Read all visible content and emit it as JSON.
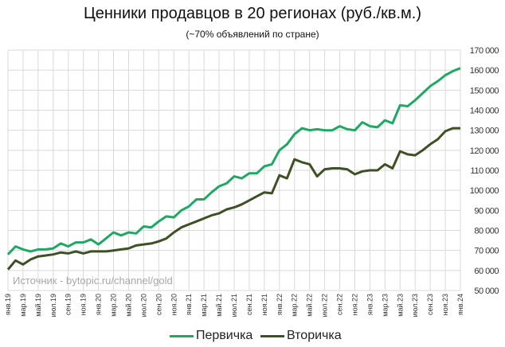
{
  "chart_data": {
    "type": "line",
    "title": "Ценники продавцов в 20 регионах (руб./кв.м.)",
    "subtitle": "(~70% объявлений по стране)",
    "watermark": "Источник - bytopic.ru/channel/gold",
    "ylim": [
      50000,
      170000
    ],
    "y_ticks": [
      50000,
      60000,
      70000,
      80000,
      90000,
      100000,
      110000,
      120000,
      130000,
      140000,
      150000,
      160000,
      170000
    ],
    "y_tick_labels": [
      "50 000",
      "60 000",
      "70 000",
      "80 000",
      "90 000",
      "100 000",
      "110 000",
      "120 000",
      "130 000",
      "140 000",
      "150 000",
      "160 000",
      "170 000"
    ],
    "grid": true,
    "legend_position": "bottom",
    "x_tick_labels": [
      "янв.19",
      "мар.19",
      "май.19",
      "июл.19",
      "сен.19",
      "ноя.19",
      "янв.20",
      "мар.20",
      "май.20",
      "июл.20",
      "сен.20",
      "ноя.20",
      "янв.21",
      "мар.21",
      "май.21",
      "июл.21",
      "сен.21",
      "ноя.21",
      "янв.22",
      "мар.22",
      "май.22",
      "июл.22",
      "сен.22",
      "ноя.22",
      "янв.23",
      "мар.23",
      "май.23",
      "июл.23",
      "сен.23",
      "ноя.23",
      "янв.24"
    ],
    "x_range": [
      "2019-01",
      "2024-01"
    ],
    "series": [
      {
        "name": "Первичка",
        "color": "#1fa863",
        "values": [
          68000,
          72000,
          70500,
          69500,
          70500,
          70500,
          71000,
          73500,
          72000,
          74000,
          74000,
          75500,
          73000,
          76000,
          79000,
          77500,
          79000,
          78500,
          82000,
          81500,
          84500,
          87000,
          86500,
          90000,
          92000,
          95500,
          95500,
          99000,
          102000,
          103500,
          107000,
          106000,
          108500,
          108500,
          112000,
          113000,
          120000,
          123000,
          128000,
          131000,
          130000,
          130500,
          130000,
          130000,
          132000,
          130500,
          130000,
          134000,
          132000,
          131500,
          135000,
          133500,
          142500,
          142000,
          145000,
          148500,
          152000,
          154500,
          157500,
          159500,
          161000
        ]
      },
      {
        "name": "Вторичка",
        "color": "#3e5024",
        "values": [
          60500,
          65000,
          63000,
          65500,
          67000,
          67500,
          68000,
          69000,
          68500,
          69500,
          68500,
          69500,
          69500,
          69500,
          70000,
          70500,
          71000,
          72500,
          73000,
          73500,
          74500,
          76000,
          79000,
          81500,
          83000,
          84500,
          86000,
          87500,
          88500,
          90500,
          91500,
          93000,
          95000,
          97000,
          99000,
          98500,
          107500,
          106000,
          115500,
          114000,
          113000,
          107000,
          110500,
          111000,
          111000,
          110500,
          108000,
          109500,
          110000,
          110000,
          113000,
          111000,
          119500,
          118000,
          117500,
          120000,
          123000,
          125500,
          129500,
          131000,
          131000
        ]
      }
    ]
  }
}
